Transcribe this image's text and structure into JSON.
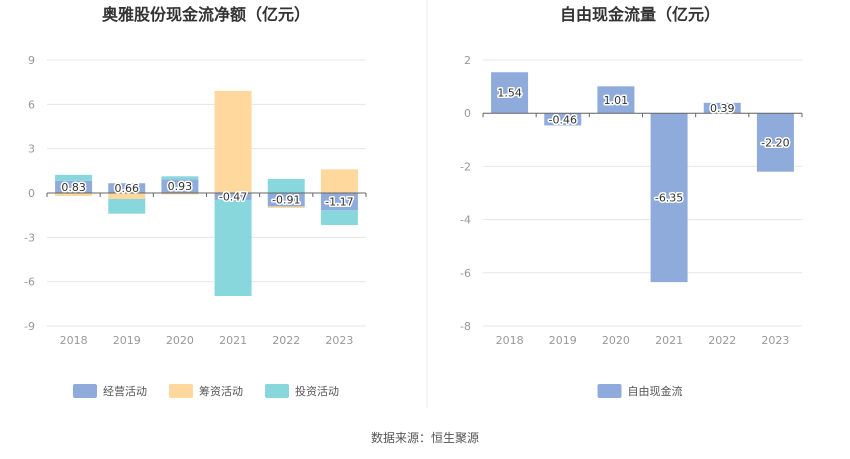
{
  "chart_data": [
    {
      "type": "bar",
      "stacked": true,
      "title": "奥雅股份现金流净额（亿元）",
      "categories": [
        "2018",
        "2019",
        "2020",
        "2021",
        "2022",
        "2023"
      ],
      "ylim": [
        -9,
        9
      ],
      "yticks": [
        "9",
        "6",
        "3",
        "0",
        "-3",
        "-6",
        "-9"
      ],
      "grid": true,
      "legend_position": "bottom",
      "series": [
        {
          "name": "经营活动",
          "color": "#8fabdb",
          "values": [
            0.83,
            0.66,
            0.93,
            -0.47,
            -0.91,
            -1.17
          ]
        },
        {
          "name": "筹资活动",
          "color": "#fed89c",
          "values": [
            -0.2,
            -0.4,
            -0.1,
            6.9,
            -0.1,
            1.6
          ]
        },
        {
          "name": "投资活动",
          "color": "#88d7dc",
          "values": [
            0.4,
            -1.0,
            0.2,
            -6.5,
            0.95,
            -1.0
          ]
        }
      ],
      "data_labels": [
        "0.83",
        "0.66",
        "0.93",
        "-0.47",
        "-0.91",
        "-1.17"
      ]
    },
    {
      "type": "bar",
      "title": "自由现金流量（亿元）",
      "categories": [
        "2018",
        "2019",
        "2020",
        "2021",
        "2022",
        "2023"
      ],
      "ylim": [
        -8,
        2
      ],
      "yticks": [
        "2",
        "0",
        "-2",
        "-4",
        "-6",
        "-8"
      ],
      "grid": true,
      "legend_position": "bottom",
      "series": [
        {
          "name": "自由现金流",
          "color": "#8fabdb",
          "values": [
            1.54,
            -0.46,
            1.01,
            -6.35,
            0.39,
            -2.2
          ]
        }
      ],
      "data_labels": [
        "1.54",
        "-0.46",
        "1.01",
        "-6.35",
        "0.39",
        "-2.20"
      ]
    }
  ],
  "source": "数据来源：恒生聚源"
}
